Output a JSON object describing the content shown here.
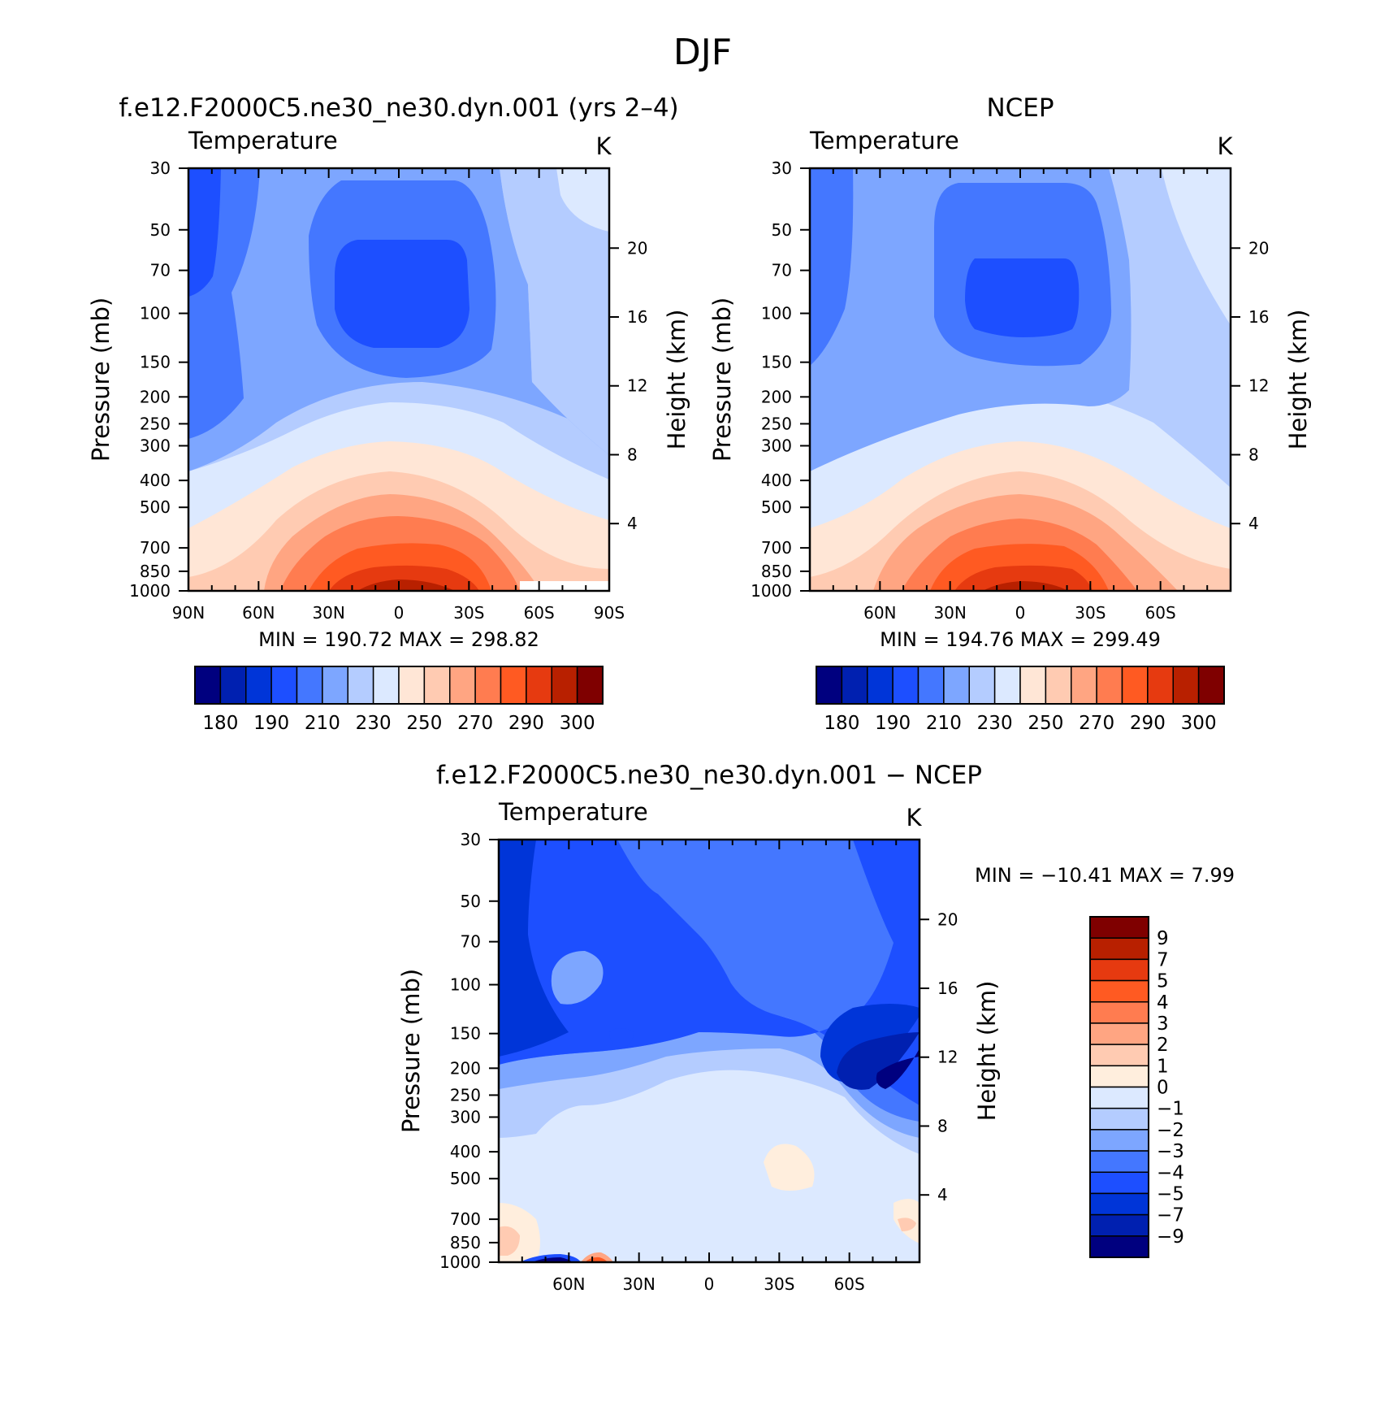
{
  "figure": {
    "title": "DJF",
    "colors": {
      "abs_levels": [
        "#00007f",
        "#0020b0",
        "#0035d8",
        "#1d4fff",
        "#4477ff",
        "#7da6ff",
        "#b4ccff",
        "#dce9ff",
        "#ffe6d6",
        "#ffcbb2",
        "#ffa582",
        "#ff7c50",
        "#ff5a22",
        "#e63a10",
        "#b82000",
        "#7f0000"
      ],
      "diff_levels": [
        "#00007f",
        "#0020b0",
        "#0035d8",
        "#1d4fff",
        "#4477ff",
        "#7da6ff",
        "#b4ccff",
        "#dce9ff",
        "#ffeedd",
        "#ffcbb2",
        "#ffa582",
        "#ff7c50",
        "#ff5a22",
        "#e63a10",
        "#b82000",
        "#7f0000"
      ]
    }
  },
  "chart_data": [
    {
      "id": "model",
      "type": "contour",
      "title": "f.e12.F2000C5.ne30_ne30.dyn.001 (yrs 2–4)",
      "field_label": "Temperature",
      "units": "K",
      "ylabel": "Pressure (mb)",
      "ylabel_right": "Height (km)",
      "x_ticks": [
        "90N",
        "60N",
        "30N",
        "0",
        "30S",
        "60S",
        "90S"
      ],
      "y_ticks": [
        "30",
        "50",
        "70",
        "100",
        "150",
        "200",
        "250",
        "300",
        "400",
        "500",
        "700",
        "850",
        "1000"
      ],
      "y_ticks_right": [
        "20",
        "16",
        "12",
        "8",
        "4"
      ],
      "xlim": [
        90,
        -90
      ],
      "ylim": [
        1000,
        30
      ],
      "y_scale": "log",
      "stats": {
        "min_label": "MIN",
        "min_value": "190.72",
        "max_label": "MAX",
        "max_value": "298.82"
      },
      "colorbar": {
        "orientation": "horizontal",
        "levels": [
          175,
          180,
          185,
          190,
          200,
          210,
          220,
          230,
          240,
          250,
          260,
          270,
          280,
          290,
          295,
          300
        ],
        "tick_labels": [
          "180",
          "190",
          "210",
          "230",
          "250",
          "270",
          "290",
          "300"
        ]
      }
    },
    {
      "id": "obs",
      "type": "contour",
      "title": "NCEP",
      "field_label": "Temperature",
      "units": "K",
      "ylabel": "Pressure (mb)",
      "ylabel_right": "Height (km)",
      "x_ticks": [
        "60N",
        "30N",
        "0",
        "30S",
        "60S"
      ],
      "y_ticks": [
        "30",
        "50",
        "70",
        "100",
        "150",
        "200",
        "250",
        "300",
        "400",
        "500",
        "700",
        "850",
        "1000"
      ],
      "y_ticks_right": [
        "20",
        "16",
        "12",
        "8",
        "4"
      ],
      "xlim": [
        90,
        -90
      ],
      "ylim": [
        1000,
        30
      ],
      "y_scale": "log",
      "stats": {
        "min_label": "MIN",
        "min_value": "194.76",
        "max_label": "MAX",
        "max_value": "299.49"
      },
      "colorbar": {
        "orientation": "horizontal",
        "levels": [
          175,
          180,
          185,
          190,
          200,
          210,
          220,
          230,
          240,
          250,
          260,
          270,
          280,
          290,
          295,
          300
        ],
        "tick_labels": [
          "180",
          "190",
          "210",
          "230",
          "250",
          "270",
          "290",
          "300"
        ]
      }
    },
    {
      "id": "diff",
      "type": "contour",
      "title": "f.e12.F2000C5.ne30_ne30.dyn.001 − NCEP",
      "field_label": "Temperature",
      "units": "K",
      "ylabel": "Pressure (mb)",
      "ylabel_right": "Height (km)",
      "x_ticks": [
        "60N",
        "30N",
        "0",
        "30S",
        "60S"
      ],
      "y_ticks": [
        "30",
        "50",
        "70",
        "100",
        "150",
        "200",
        "250",
        "300",
        "400",
        "500",
        "700",
        "850",
        "1000"
      ],
      "y_ticks_right": [
        "20",
        "16",
        "12",
        "8",
        "4"
      ],
      "xlim": [
        90,
        -90
      ],
      "ylim": [
        1000,
        30
      ],
      "y_scale": "log",
      "stats": {
        "min_label": "MIN",
        "min_value": "−10.41",
        "max_label": "MAX",
        "max_value": "7.99"
      },
      "colorbar": {
        "orientation": "vertical",
        "levels": [
          -9,
          -7,
          -5,
          -4,
          -3,
          -2,
          -1,
          0,
          1,
          2,
          3,
          4,
          5,
          7,
          9
        ],
        "tick_labels": [
          "9",
          "7",
          "5",
          "4",
          "3",
          "2",
          "1",
          "0",
          "−1",
          "−2",
          "−3",
          "−4",
          "−5",
          "−7",
          "−9"
        ]
      }
    }
  ]
}
